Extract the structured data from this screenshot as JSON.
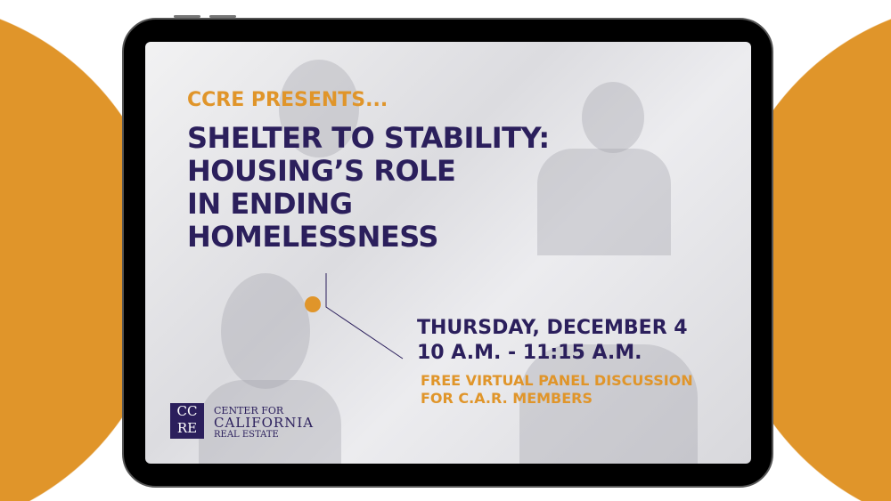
{
  "colors": {
    "accent": "#e0952a",
    "navy": "#2b1f5c"
  },
  "presenter": "CCRE PRESENTS...",
  "title_lines": [
    "SHELTER TO STABILITY:",
    "HOUSING’S ROLE",
    "IN ENDING",
    "HOMELESSNESS"
  ],
  "date": "THURSDAY, DECEMBER 4",
  "time": "10 A.M. - 11:15 A.M.",
  "details_lines": [
    "FREE VIRTUAL PANEL DISCUSSION",
    "FOR C.A.R. MEMBERS"
  ],
  "logo": {
    "mark": "CCRE",
    "lines": [
      "CENTER FOR",
      "CALIFORNIA",
      "REAL ESTATE"
    ]
  }
}
